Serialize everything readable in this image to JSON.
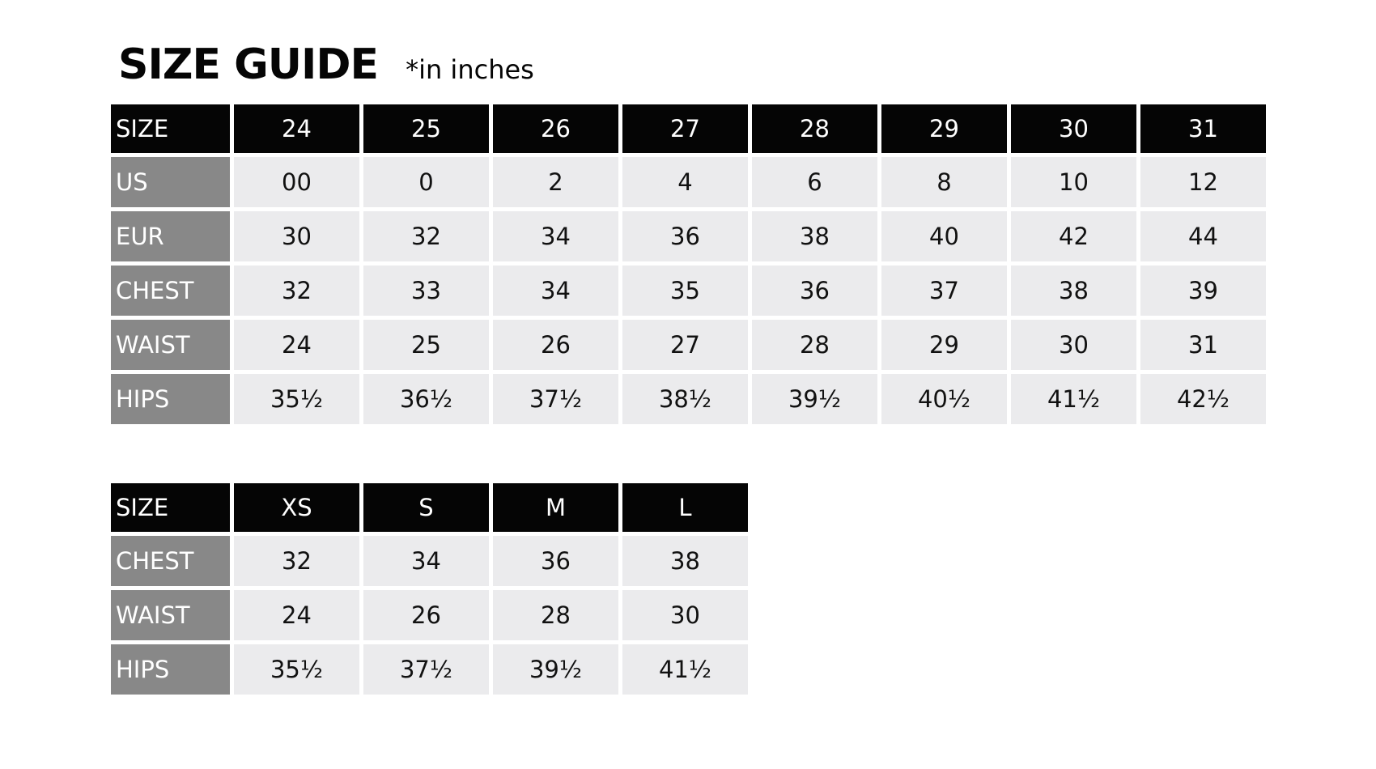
{
  "title": "SIZE GUIDE",
  "subtitle": "*in inches",
  "colors": {
    "header": "#050505",
    "label": "#888888",
    "cell": "#ebebed"
  },
  "table_numeric": {
    "header": [
      "SIZE",
      "24",
      "25",
      "26",
      "27",
      "28",
      "29",
      "30",
      "31"
    ],
    "rows": [
      [
        "US",
        "00",
        "0",
        "2",
        "4",
        "6",
        "8",
        "10",
        "12"
      ],
      [
        "EUR",
        "30",
        "32",
        "34",
        "36",
        "38",
        "40",
        "42",
        "44"
      ],
      [
        "CHEST",
        "32",
        "33",
        "34",
        "35",
        "36",
        "37",
        "38",
        "39"
      ],
      [
        "WAIST",
        "24",
        "25",
        "26",
        "27",
        "28",
        "29",
        "30",
        "31"
      ],
      [
        "HIPS",
        "35½",
        "36½",
        "37½",
        "38½",
        "39½",
        "40½",
        "41½",
        "42½"
      ]
    ]
  },
  "table_letter": {
    "header": [
      "SIZE",
      "XS",
      "S",
      "M",
      "L"
    ],
    "rows": [
      [
        "CHEST",
        "32",
        "34",
        "36",
        "38"
      ],
      [
        "WAIST",
        "24",
        "26",
        "28",
        "30"
      ],
      [
        "HIPS",
        "35½",
        "37½",
        "39½",
        "41½"
      ]
    ]
  }
}
